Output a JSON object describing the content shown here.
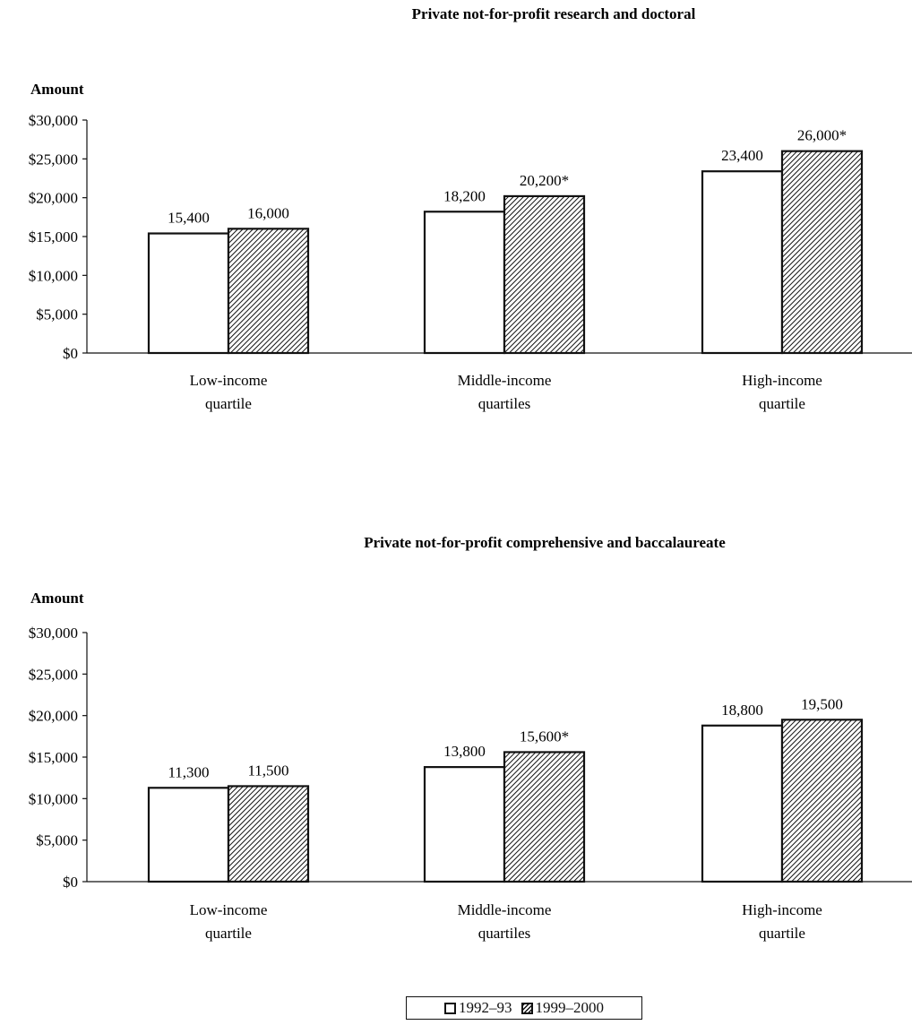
{
  "chart_data": [
    {
      "type": "bar",
      "title": "Private not-for-profit research and doctoral",
      "ylabel": "Amount",
      "xlabel": "",
      "ylim": [
        0,
        30000
      ],
      "yticks": [
        "$0",
        "$5,000",
        "$10,000",
        "$15,000",
        "$20,000",
        "$25,000",
        "$30,000"
      ],
      "categories": [
        "Low-income quartile",
        "Middle-income quartiles",
        "High-income quartile"
      ],
      "category_lines": [
        [
          "Low-income",
          "quartile"
        ],
        [
          "Middle-income",
          "quartiles"
        ],
        [
          "High-income",
          "quartile"
        ]
      ],
      "series": [
        {
          "name": "1992–93",
          "values": [
            15400,
            18200,
            23400
          ],
          "labels": [
            "15,400",
            "18,200",
            "23,400"
          ]
        },
        {
          "name": "1999–2000",
          "values": [
            16000,
            20200,
            26000
          ],
          "labels": [
            "16,000",
            "20,200*",
            "26,000*"
          ]
        }
      ],
      "grid": false
    },
    {
      "type": "bar",
      "title": "Private not-for-profit comprehensive and baccalaureate",
      "ylabel": "Amount",
      "xlabel": "",
      "ylim": [
        0,
        30000
      ],
      "yticks": [
        "$0",
        "$5,000",
        "$10,000",
        "$15,000",
        "$20,000",
        "$25,000",
        "$30,000"
      ],
      "categories": [
        "Low-income quartile",
        "Middle-income quartiles",
        "High-income quartile"
      ],
      "category_lines": [
        [
          "Low-income",
          "quartile"
        ],
        [
          "Middle-income",
          "quartiles"
        ],
        [
          "High-income",
          "quartile"
        ]
      ],
      "series": [
        {
          "name": "1992–93",
          "values": [
            11300,
            13800,
            18800
          ],
          "labels": [
            "11,300",
            "13,800",
            "18,800"
          ]
        },
        {
          "name": "1999–2000",
          "values": [
            11500,
            15600,
            19500
          ],
          "labels": [
            "11,500",
            "15,600*",
            "19,500"
          ]
        }
      ],
      "grid": false
    }
  ],
  "legend": {
    "placement": "bottom",
    "items": [
      {
        "label": "1992–93",
        "style": "white"
      },
      {
        "label": "1999–2000",
        "style": "hatched"
      }
    ]
  },
  "colors": {
    "outline": "#111111",
    "fill_1992": "#ffffff",
    "hatch": "#111111"
  }
}
